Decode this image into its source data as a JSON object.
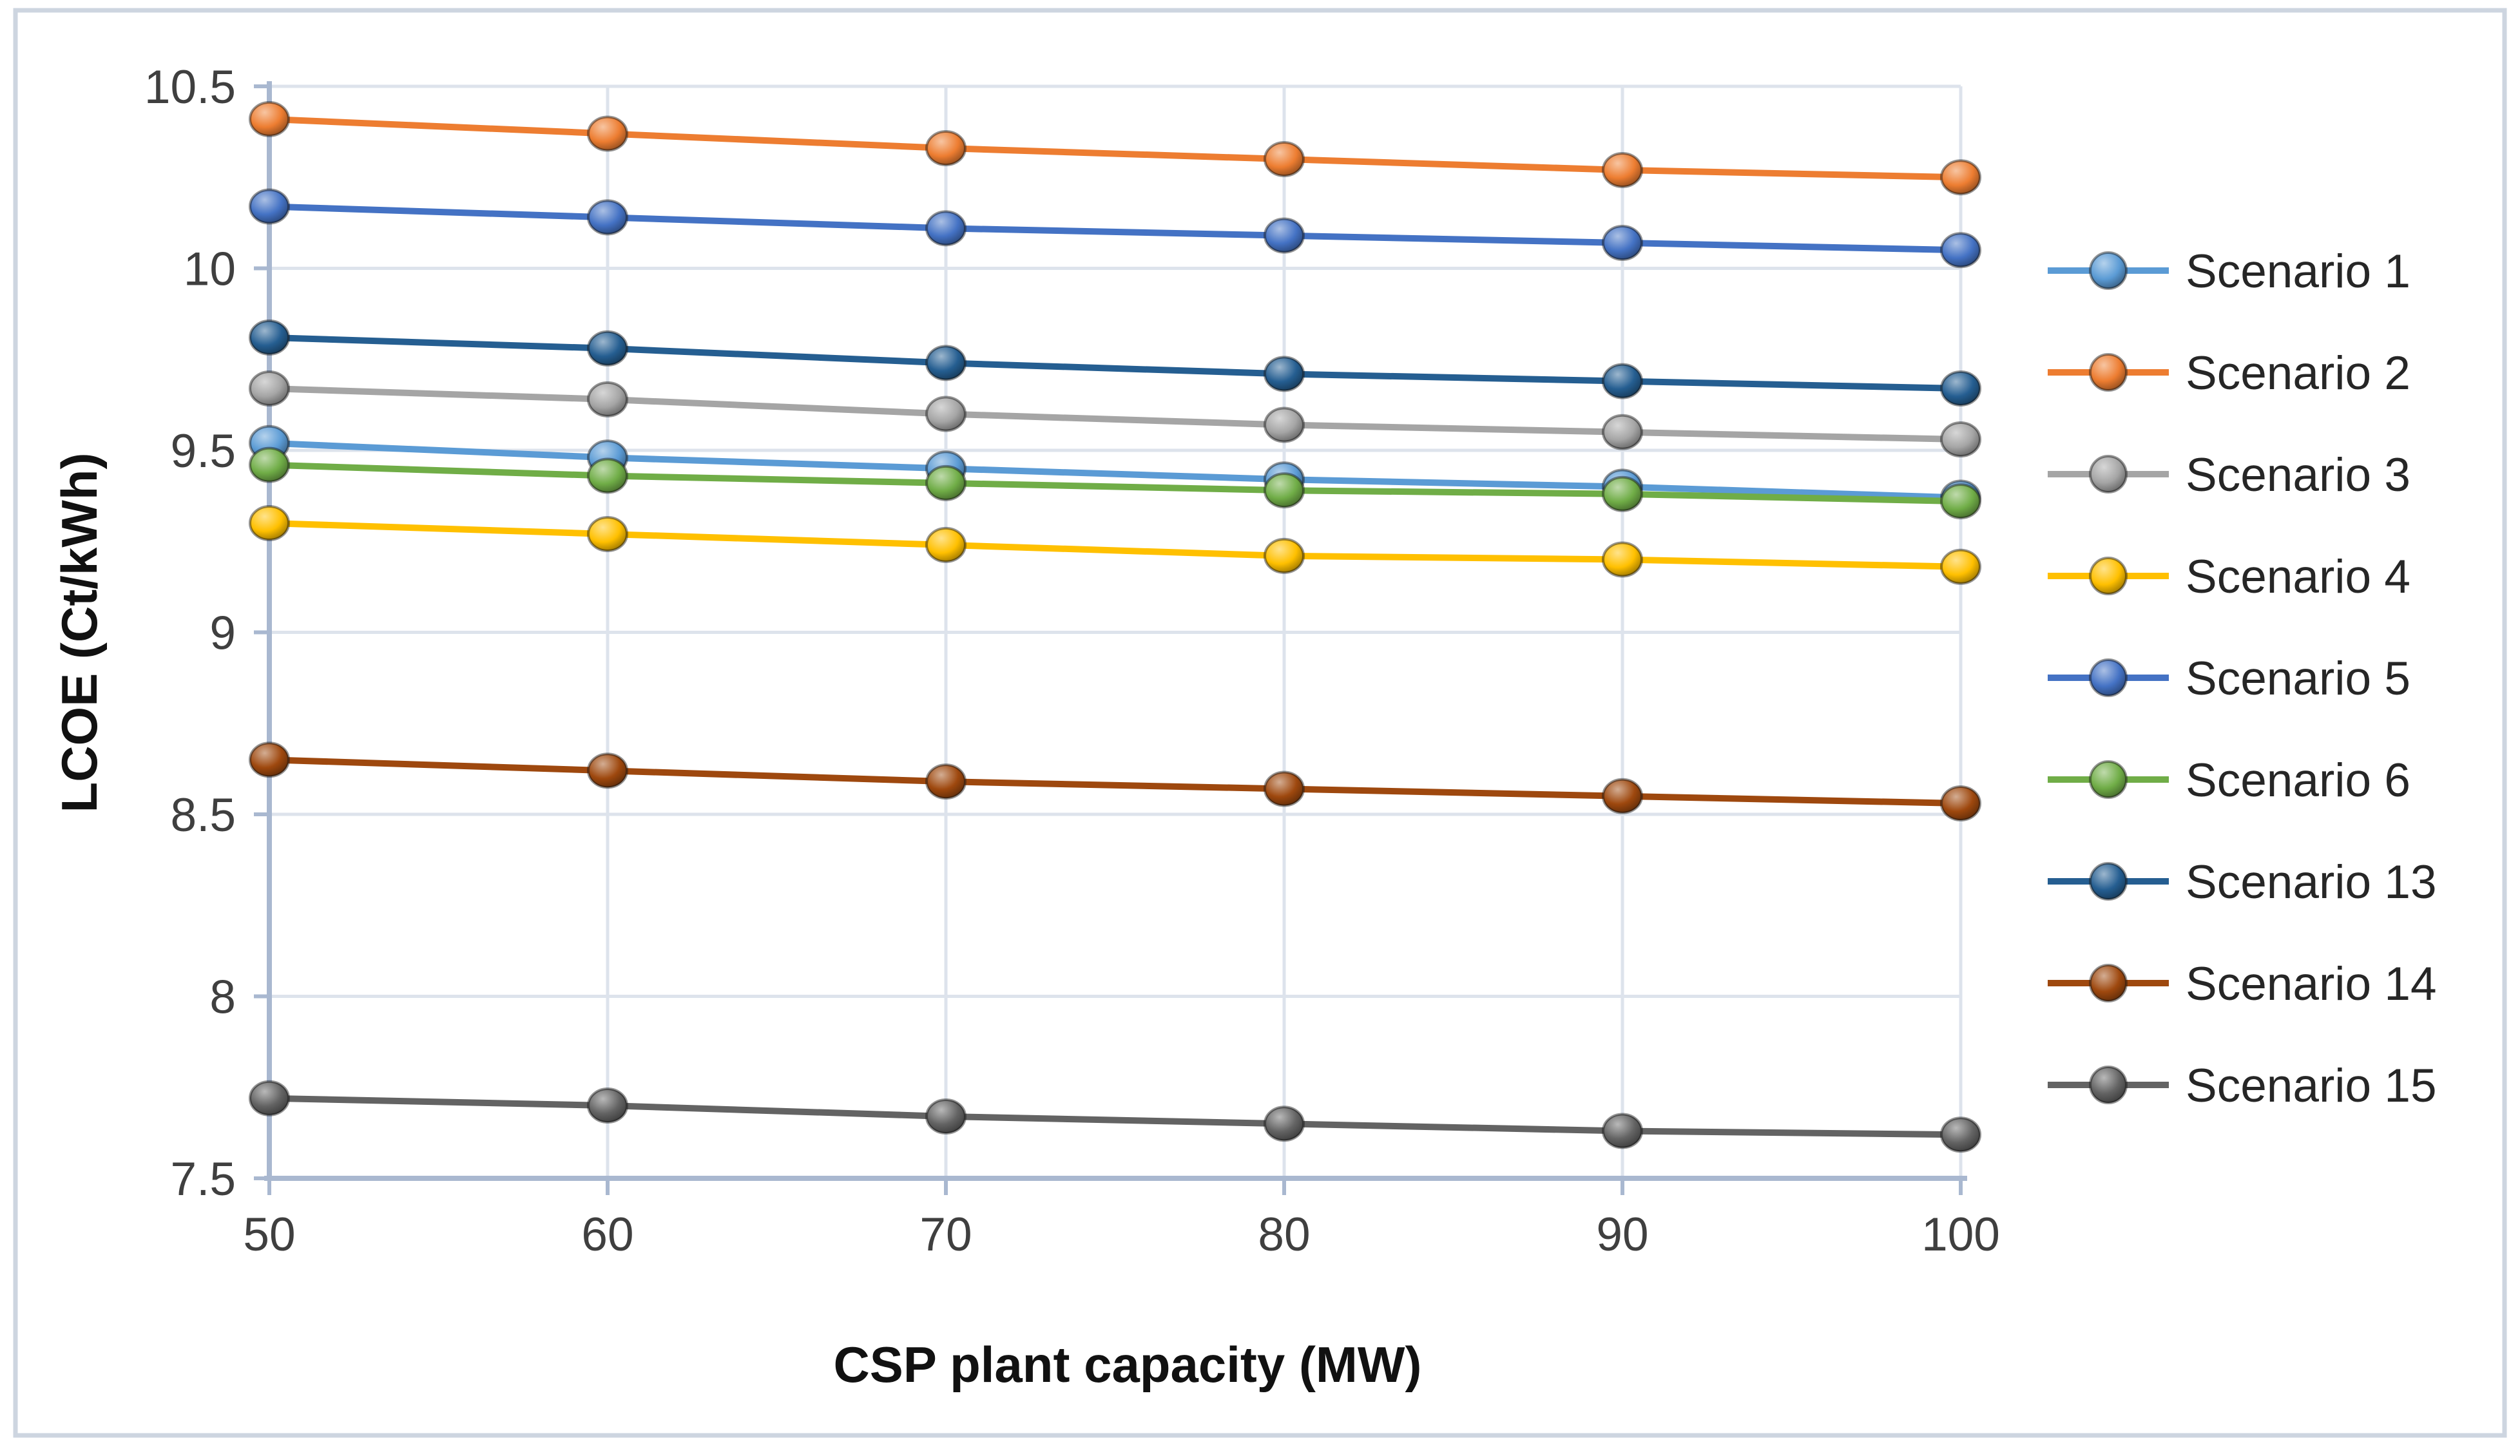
{
  "chart_data": {
    "type": "line",
    "title": "",
    "xlabel": "CSP plant capacity (MW)",
    "ylabel": "LCOE (Ct/kWh)",
    "x": [
      50,
      60,
      70,
      80,
      90,
      100
    ],
    "x_tick_labels": [
      "50",
      "60",
      "70",
      "80",
      "90",
      "100"
    ],
    "y_ticks": [
      {
        "label": "10.5",
        "value": 10.5
      },
      {
        "label": "10",
        "value": 10.0
      },
      {
        "label": "9.5",
        "value": 9.5
      },
      {
        "label": "9",
        "value": 9.0
      },
      {
        "label": "8.5",
        "value": 8.5
      },
      {
        "label": "8",
        "value": 8.0
      },
      {
        "label": "7.5",
        "value": 7.5
      }
    ],
    "ylim": [
      7.5,
      10.5
    ],
    "grid": true,
    "legend_position": "right",
    "series": [
      {
        "name": "Scenario 1",
        "color": "#5B9BD5",
        "values": [
          9.52,
          9.48,
          9.45,
          9.42,
          9.4,
          9.37
        ]
      },
      {
        "name": "Scenario 2",
        "color": "#ED7D31",
        "values": [
          10.41,
          10.37,
          10.33,
          10.3,
          10.27,
          10.25
        ]
      },
      {
        "name": "Scenario 3",
        "color": "#A5A5A5",
        "values": [
          9.67,
          9.64,
          9.6,
          9.57,
          9.55,
          9.53
        ]
      },
      {
        "name": "Scenario 4",
        "color": "#FFC000",
        "values": [
          9.3,
          9.27,
          9.24,
          9.21,
          9.2,
          9.18
        ]
      },
      {
        "name": "Scenario 5",
        "color": "#4472C4",
        "values": [
          10.17,
          10.14,
          10.11,
          10.09,
          10.07,
          10.05
        ]
      },
      {
        "name": "Scenario 6",
        "color": "#70AD47",
        "values": [
          9.46,
          9.43,
          9.41,
          9.39,
          9.38,
          9.36
        ]
      },
      {
        "name": "Scenario 13",
        "color": "#255E91",
        "values": [
          9.81,
          9.78,
          9.74,
          9.71,
          9.69,
          9.67
        ]
      },
      {
        "name": "Scenario 14",
        "color": "#9E480E",
        "values": [
          8.65,
          8.62,
          8.59,
          8.57,
          8.55,
          8.53
        ]
      },
      {
        "name": "Scenario 15",
        "color": "#636363",
        "values": [
          7.72,
          7.7,
          7.67,
          7.65,
          7.63,
          7.62
        ]
      }
    ]
  }
}
